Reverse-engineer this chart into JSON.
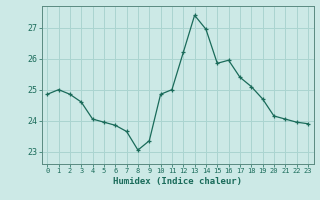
{
  "x": [
    0,
    1,
    2,
    3,
    4,
    5,
    6,
    7,
    8,
    9,
    10,
    11,
    12,
    13,
    14,
    15,
    16,
    17,
    18,
    19,
    20,
    21,
    22,
    23
  ],
  "y": [
    24.85,
    25.0,
    24.85,
    24.6,
    24.05,
    23.95,
    23.85,
    23.65,
    23.05,
    23.35,
    24.85,
    25.0,
    26.2,
    27.4,
    26.95,
    25.85,
    25.95,
    25.4,
    25.1,
    24.7,
    24.15,
    24.05,
    23.95,
    23.9
  ],
  "xlabel": "Humidex (Indice chaleur)",
  "bg_color": "#cce9e6",
  "grid_color": "#aad4d0",
  "line_color": "#1a6b5a",
  "marker_color": "#1a6b5a",
  "tick_color": "#1a6b5a",
  "label_color": "#1a6b5a",
  "axis_color": "#5a8a80",
  "yticks": [
    23,
    24,
    25,
    26,
    27
  ],
  "xticks": [
    0,
    1,
    2,
    3,
    4,
    5,
    6,
    7,
    8,
    9,
    10,
    11,
    12,
    13,
    14,
    15,
    16,
    17,
    18,
    19,
    20,
    21,
    22,
    23
  ],
  "xlim": [
    -0.5,
    23.5
  ],
  "ylim": [
    22.6,
    27.7
  ]
}
